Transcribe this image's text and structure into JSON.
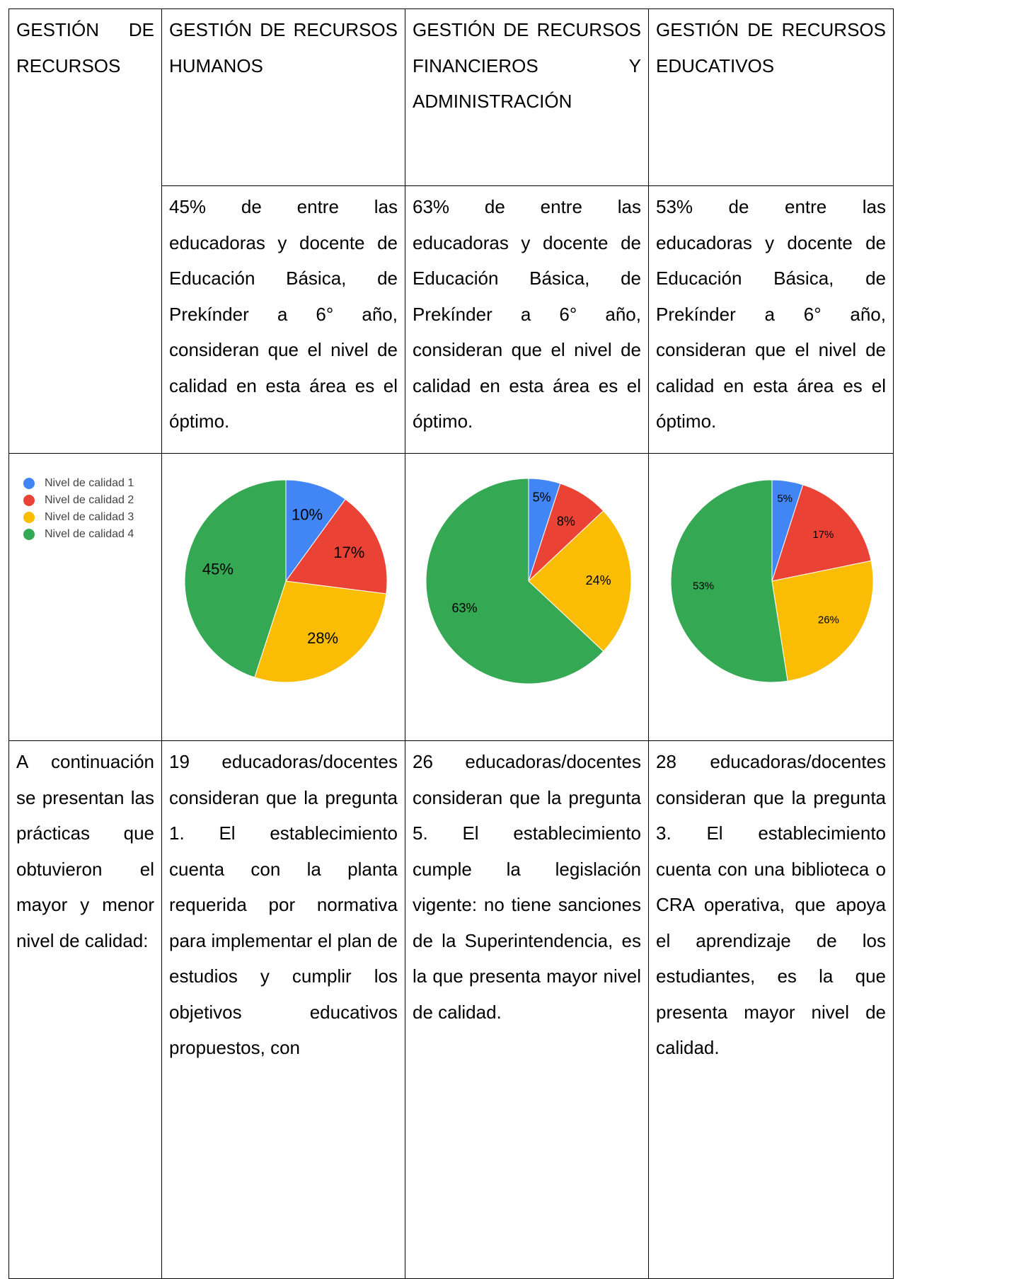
{
  "table": {
    "header": [
      "GESTIÓN DE RECURSOS",
      "GESTIÓN DE RECURSOS HUMANOS",
      "GESTIÓN DE RECURSOS FINANCIEROS Y ADMINISTRACIÓN",
      "GESTIÓN DE RECURSOS EDUCATIVOS"
    ],
    "summaries": [
      "45% de entre las educadoras y docente de Educación Básica, de Prekínder a 6° año, consideran que el nivel de calidad en esta área es el óptimo.",
      "63% de entre las educadoras y docente de Educación Básica, de Prekínder a 6° año, consideran que el nivel de calidad en esta área es el óptimo.",
      "53% de entre las educadoras y docente de Educación Básica, de Prekínder a 6° año, consideran que el nivel de calidad en esta área es el óptimo."
    ],
    "practices": [
      "A continuación se presentan las prácticas que obtuvieron el mayor y menor nivel de calidad:",
      "19 educadoras/docentes consideran que la pregunta 1. El establecimiento cuenta con la planta requerida por normativa para implementar el plan de estudios y cumplir los objetivos educativos propuestos, con",
      "26 educadoras/docentes consideran que la pregunta 5. El establecimiento cumple la legislación vigente: no tiene sanciones de la Superintendencia, es la que presenta mayor nivel de calidad.",
      "28 educadoras/docentes consideran que la pregunta 3. El establecimiento cuenta con una biblioteca o CRA operativa, que apoya el aprendizaje de los estudiantes, es la que presenta mayor nivel de calidad."
    ]
  },
  "legend": {
    "labels": [
      "Nivel de calidad 1",
      "Nivel de calidad 2",
      "Nivel de calidad 3",
      "Nivel de calidad 4"
    ],
    "colors": [
      "#4285f4",
      "#ea4335",
      "#fbbc04",
      "#34a853"
    ]
  },
  "chart_data": [
    {
      "type": "pie",
      "values": [
        10,
        17,
        28,
        45
      ],
      "value_labels": [
        "10%",
        "17%",
        "28%",
        "45%"
      ]
    },
    {
      "type": "pie",
      "values": [
        5,
        8,
        24,
        63
      ],
      "value_labels": [
        "5%",
        "8%",
        "24%",
        "63%"
      ]
    },
    {
      "type": "pie",
      "values": [
        5,
        17,
        26,
        53
      ],
      "value_labels": [
        "5%",
        "17%",
        "26%",
        "53%"
      ]
    }
  ]
}
